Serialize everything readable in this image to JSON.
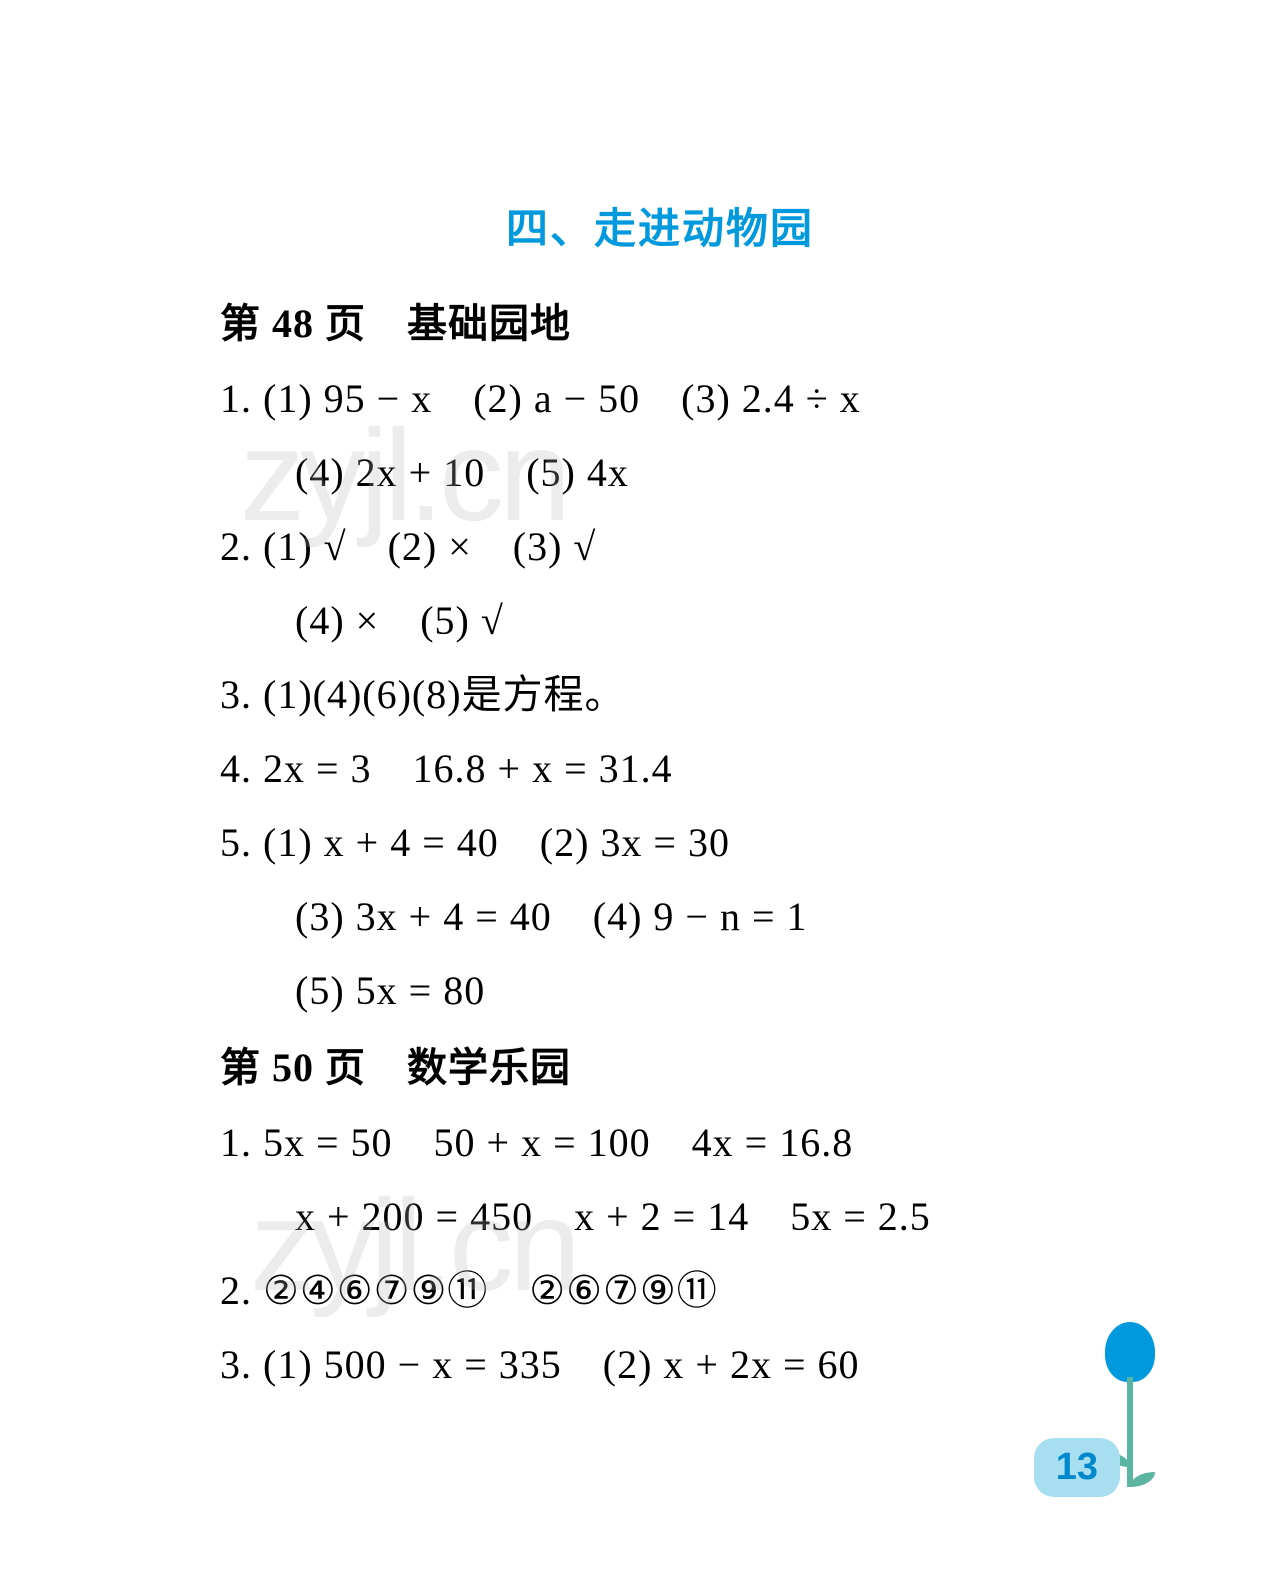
{
  "title": "四、走进动物园",
  "sections": [
    {
      "header": "第 48 页　基础园地",
      "lines": [
        {
          "text": "1.  (1) 95 − x　(2) a − 50　(3) 2.4 ÷ x",
          "indent": false
        },
        {
          "text": "(4) 2x + 10　(5) 4x",
          "indent": true
        },
        {
          "text": "2.  (1) √　(2) ×　(3) √",
          "indent": false
        },
        {
          "text": "(4) ×　(5) √",
          "indent": true
        },
        {
          "text": "3.  (1)(4)(6)(8)是方程。",
          "indent": false
        },
        {
          "text": "4.  2x = 3　16.8 + x = 31.4",
          "indent": false
        },
        {
          "text": "5.  (1) x + 4 = 40　(2) 3x = 30",
          "indent": false
        },
        {
          "text": "(3) 3x + 4 = 40　(4) 9 − n = 1",
          "indent": true
        },
        {
          "text": "(5) 5x = 80",
          "indent": true
        }
      ]
    },
    {
      "header": "第 50 页　数学乐园",
      "lines": [
        {
          "text": "1.  5x = 50　50 + x = 100　4x = 16.8",
          "indent": false
        },
        {
          "text": "x + 200 = 450　x + 2 = 14　5x = 2.5",
          "indent": true
        },
        {
          "text": "2.  ②④⑥⑦⑨⑪　②⑥⑦⑨⑪",
          "indent": false
        },
        {
          "text": "3.  (1) 500 − x = 335　(2) x + 2x = 60",
          "indent": false
        }
      ]
    }
  ],
  "watermark": "zyjl.cn",
  "pageNumber": "13",
  "colors": {
    "title": "#0099dd",
    "text": "#000000",
    "background": "#ffffff",
    "pageBadgeBg": "#a8dff0",
    "pageBadgeText": "#0088cc",
    "flowerHead": "#0099dd",
    "flowerStem": "#5bb5a0"
  },
  "typography": {
    "titleFontSize": 42,
    "bodyFontSize": 40,
    "fontFamily": "SimSun, serif"
  }
}
